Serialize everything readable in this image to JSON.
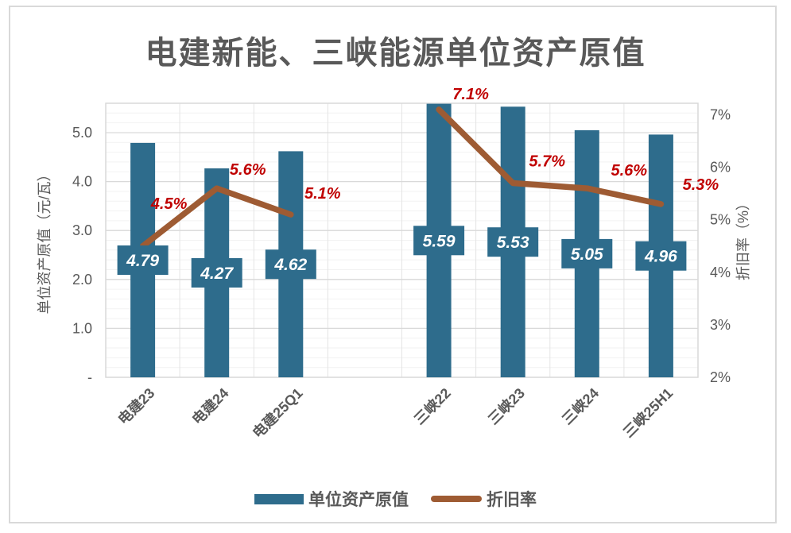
{
  "chart_data": {
    "type": "bar",
    "title": "电建新能、三峡能源单位资产原值",
    "categories": [
      "电建23",
      "电建24",
      "电建25Q1",
      "",
      "三峡22",
      "三峡23",
      "三峡24",
      "三峡25H1"
    ],
    "series": [
      {
        "name": "单位资产原值",
        "type": "bar",
        "axis": "left",
        "color": "#2e6c8c",
        "values": [
          4.79,
          4.27,
          4.62,
          null,
          5.59,
          5.53,
          5.05,
          4.96
        ],
        "labels": [
          "4.79",
          "4.27",
          "4.62",
          null,
          "5.59",
          "5.53",
          "5.05",
          "4.96"
        ]
      },
      {
        "name": "折旧率",
        "type": "line",
        "axis": "right",
        "color": "#9e5b33",
        "values": [
          4.5,
          5.6,
          5.1,
          null,
          7.1,
          5.7,
          5.6,
          5.3
        ],
        "labels": [
          "4.5%",
          "5.6%",
          "5.1%",
          null,
          "7.1%",
          "5.7%",
          "5.6%",
          "5.3%"
        ]
      }
    ],
    "left_axis": {
      "title": "单位资产原值（元/瓦）",
      "ticks": [
        "5.0",
        "4.0",
        "3.0",
        "2.0",
        "1.0",
        "-"
      ],
      "tick_values": [
        5,
        4,
        3,
        2,
        1,
        0
      ],
      "min": 0,
      "max": 5.6
    },
    "right_axis": {
      "title": "折旧率（%）",
      "ticks": [
        "7%",
        "6%",
        "5%",
        "4%",
        "3%",
        "2%"
      ],
      "tick_values": [
        7,
        6,
        5,
        4,
        3,
        2
      ],
      "min": 2,
      "max": 7.22
    },
    "legend": [
      {
        "label": "单位资产原值",
        "marker": "rect",
        "color": "#2e6c8c"
      },
      {
        "label": "折旧率",
        "marker": "line",
        "color": "#9e5b33"
      }
    ],
    "grid": "on",
    "legend_position": "bottom",
    "colors": {
      "bar": "#2e6c8c",
      "line": "#9e5b33",
      "point_label": "#c00000",
      "bar_label_text": "#ffffff",
      "axis_text": "#595959",
      "title_text": "#595959",
      "gridline_major": "#d9d9d9",
      "gridline_minor": "#f2f2f2",
      "gridline_vertical": "#e4e4e4",
      "border": "#d9d9d9"
    }
  }
}
